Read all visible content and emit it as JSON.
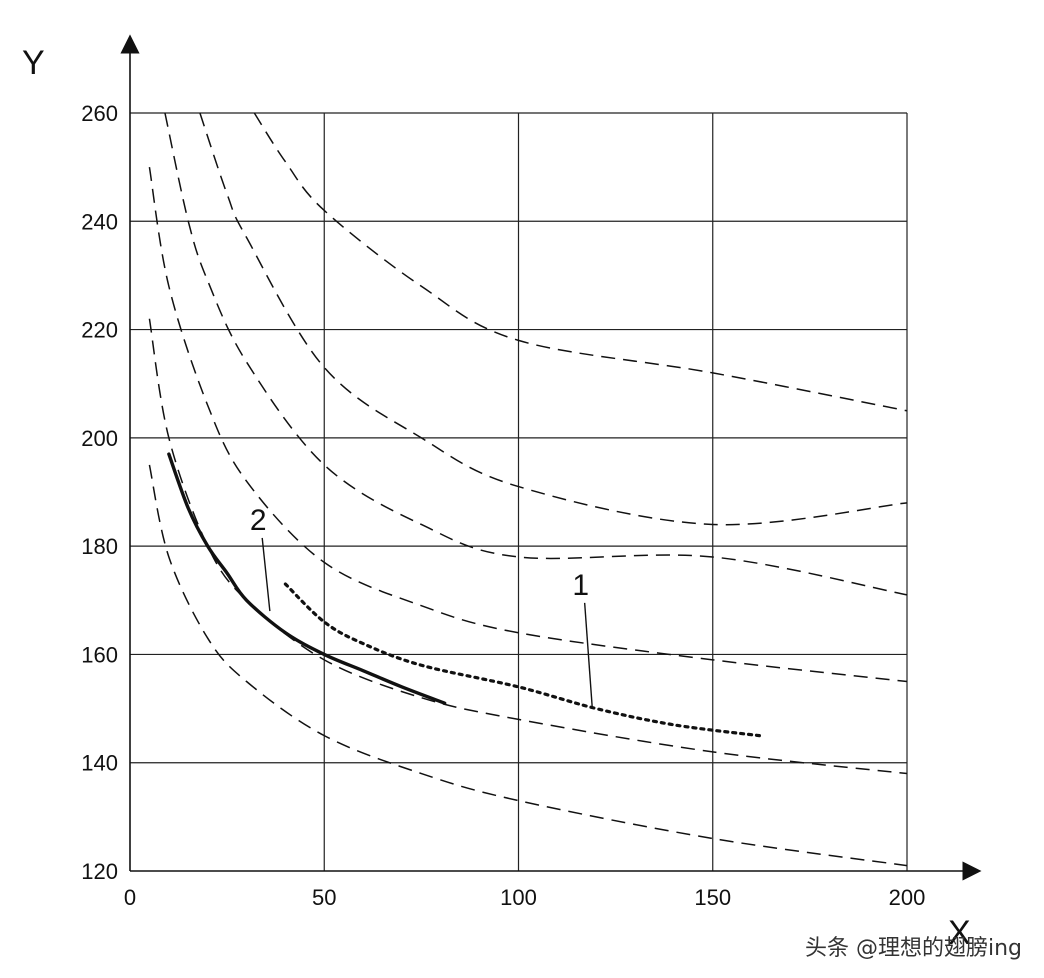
{
  "chart_data": {
    "type": "line",
    "title": "",
    "xlabel": "X",
    "ylabel": "Y",
    "xlim": [
      0,
      200
    ],
    "ylim": [
      120,
      260
    ],
    "grid": true,
    "x_ticks": [
      0,
      50,
      100,
      150,
      200
    ],
    "y_ticks": [
      120,
      140,
      160,
      180,
      200,
      220,
      240,
      260
    ],
    "reference_curves": [
      {
        "style": "dashed",
        "x": [
          5,
          10,
          20,
          30,
          50,
          75,
          100,
          150,
          200
        ],
        "y": [
          195,
          178,
          163,
          155,
          145,
          138,
          133,
          126,
          121
        ]
      },
      {
        "style": "dashed",
        "x": [
          5,
          10,
          20,
          30,
          50,
          75,
          100,
          150,
          200
        ],
        "y": [
          222,
          200,
          180,
          170,
          159,
          152,
          148,
          142,
          138
        ]
      },
      {
        "style": "dashed",
        "x": [
          5,
          10,
          20,
          30,
          50,
          75,
          100,
          150,
          200
        ],
        "y": [
          250,
          228,
          206,
          192,
          177,
          169,
          164,
          159,
          155
        ]
      },
      {
        "style": "dashed",
        "x": [
          9,
          15,
          20,
          30,
          50,
          75,
          100,
          150,
          200
        ],
        "y": [
          260,
          240,
          229,
          214,
          195,
          184,
          178,
          178,
          171
        ]
      },
      {
        "style": "dashed",
        "x": [
          18,
          25,
          30,
          50,
          75,
          100,
          150,
          200
        ],
        "y": [
          260,
          245,
          237,
          213,
          200,
          191,
          184,
          188
        ]
      },
      {
        "style": "dashed",
        "x": [
          32,
          40,
          50,
          75,
          100,
          150,
          200
        ],
        "y": [
          260,
          251,
          242,
          228,
          218,
          212,
          205
        ]
      }
    ],
    "series": [
      {
        "style": "dotted",
        "label": "1",
        "x": [
          40,
          50,
          60,
          75,
          100,
          120,
          140,
          162
        ],
        "y": [
          173,
          166,
          162,
          158,
          154,
          150,
          147,
          145
        ]
      },
      {
        "style": "solid",
        "label": "2",
        "x": [
          10,
          15,
          20,
          25,
          30,
          40,
          50,
          60,
          70,
          81
        ],
        "y": [
          197,
          187,
          180,
          175,
          170,
          164,
          160,
          157,
          154,
          151
        ]
      }
    ],
    "callouts": [
      {
        "text": "1",
        "anchor_x": 119,
        "anchor_y": 150,
        "text_x": 116,
        "text_y": 171
      },
      {
        "text": "2",
        "anchor_x": 36,
        "anchor_y": 168,
        "text_x": 33,
        "text_y": 183
      }
    ]
  },
  "watermark": "头条 @理想的翅膀ing"
}
